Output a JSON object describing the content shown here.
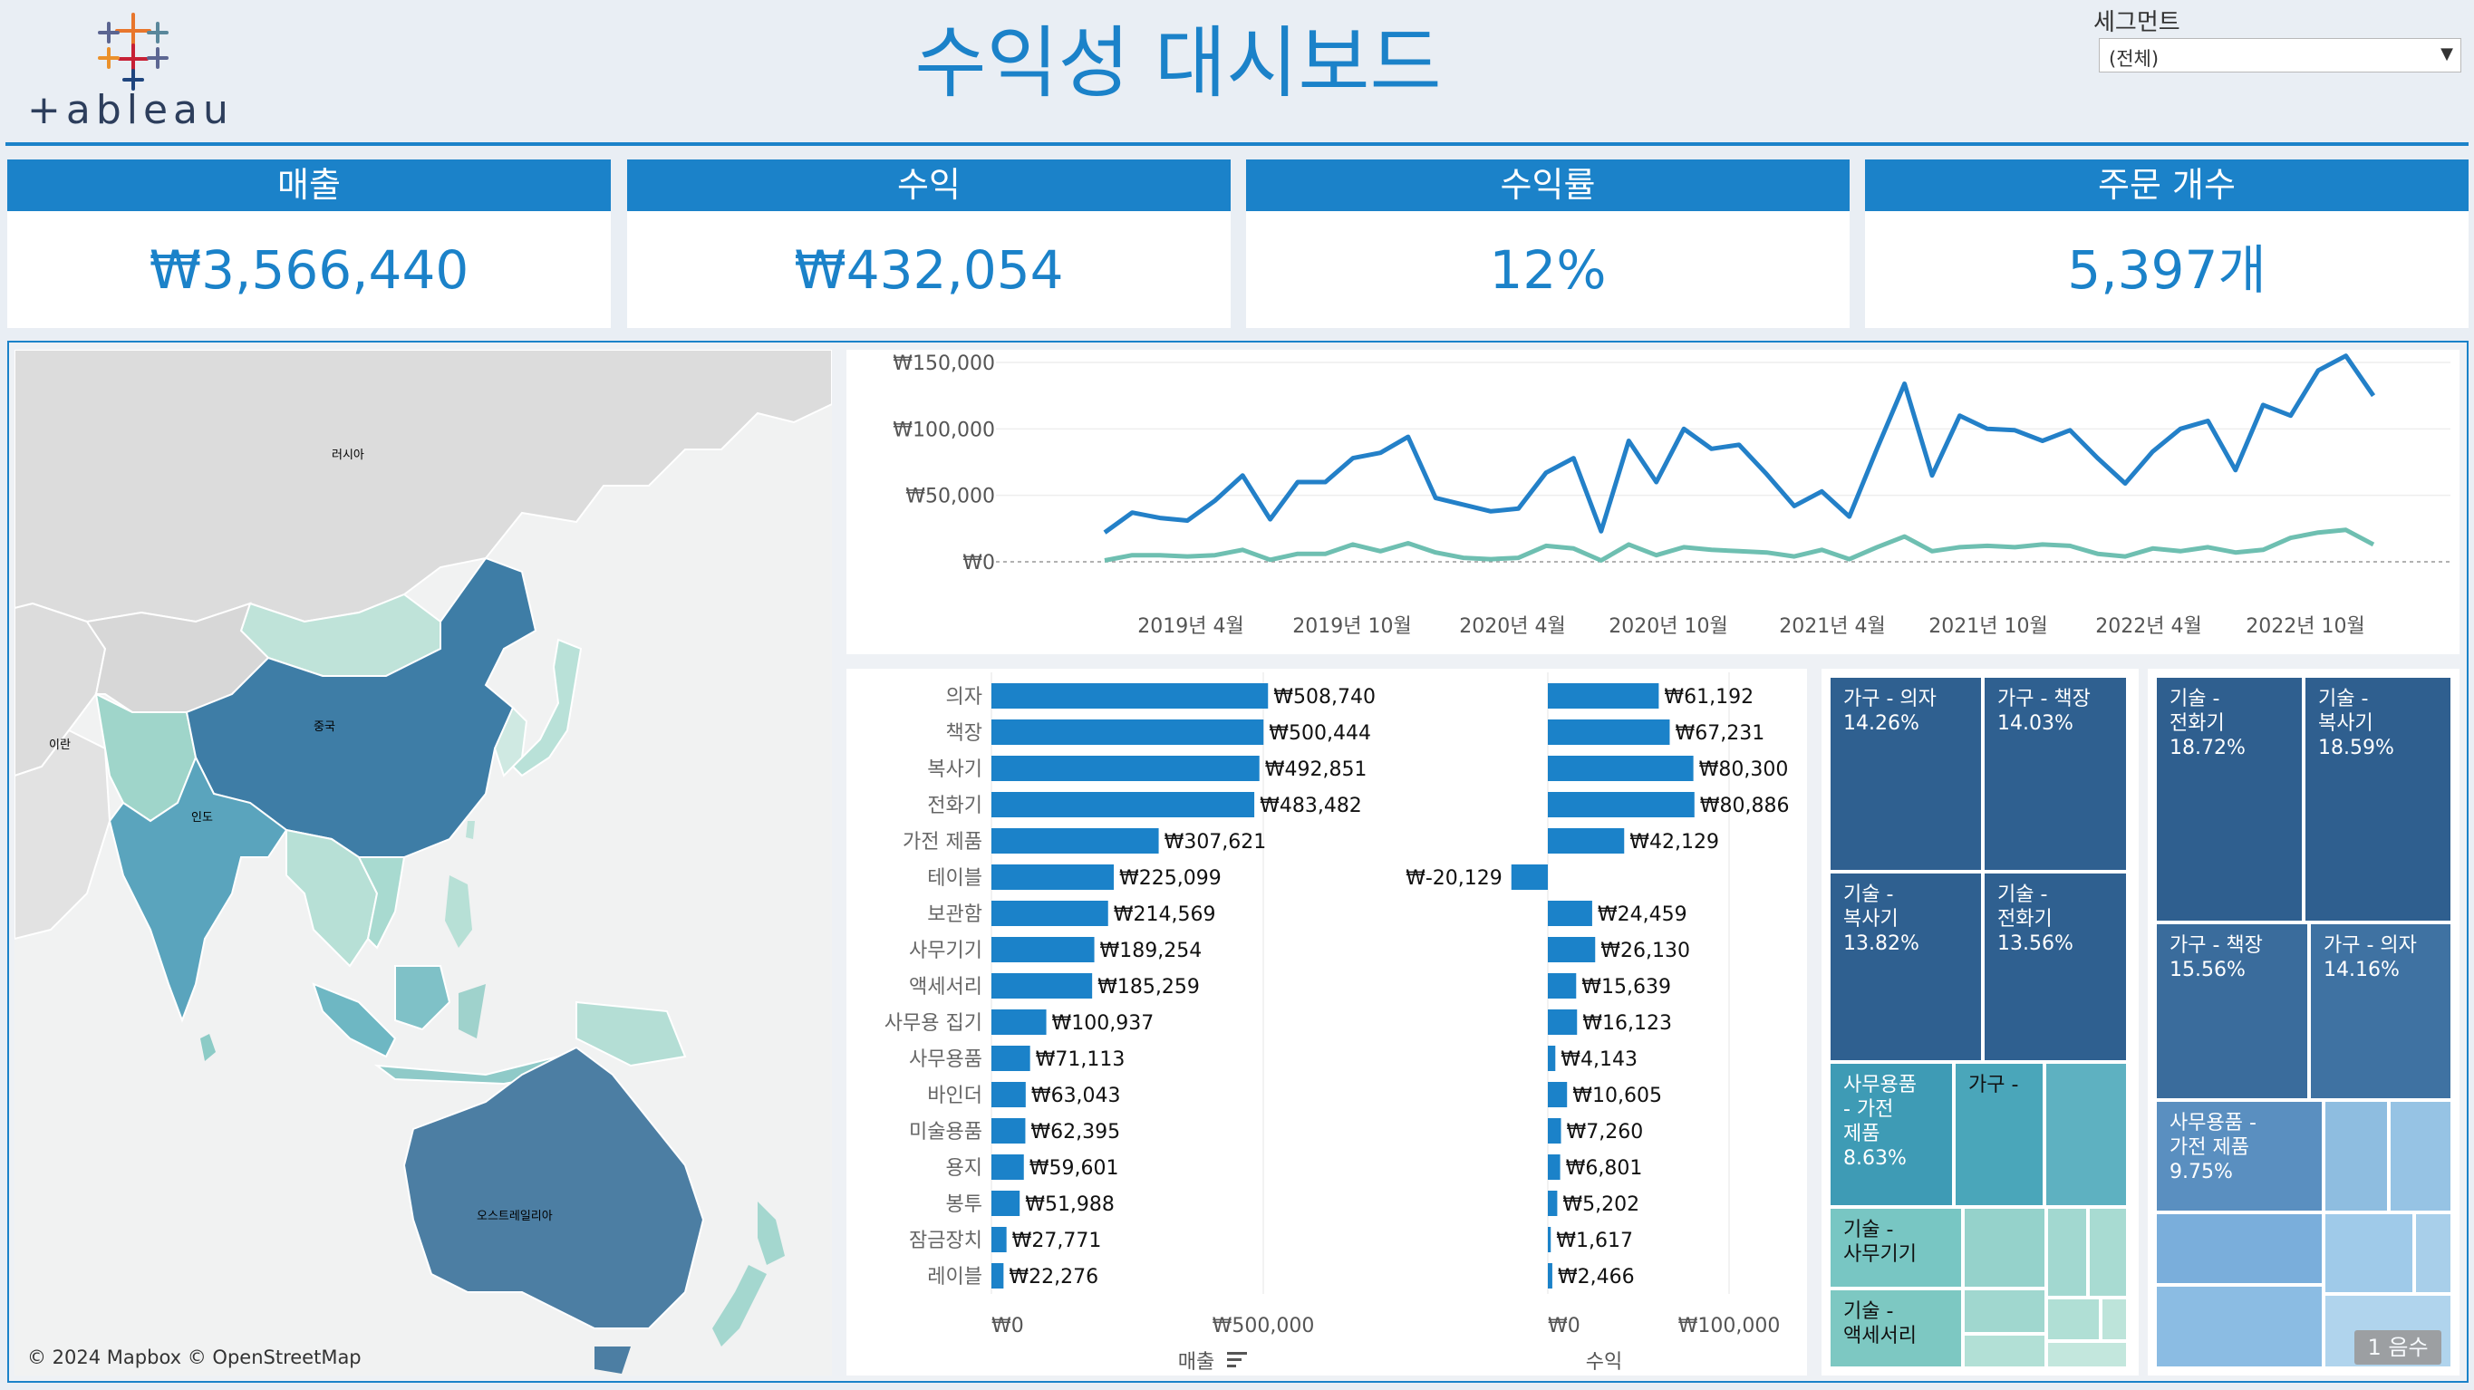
{
  "header": {
    "title": "수익성 대시보드",
    "logo_text": "+ableau",
    "segment_filter": {
      "label": "세그먼트",
      "value": "(전체)"
    }
  },
  "kpis": [
    {
      "label": "매출",
      "value": "₩3,566,440"
    },
    {
      "label": "수익",
      "value": "₩432,054"
    },
    {
      "label": "수익률",
      "value": "12%"
    },
    {
      "label": "주문 개수",
      "value": "5,397개"
    }
  ],
  "colors": {
    "accent": "#1b82c9",
    "sales_line": "#2380c8",
    "profit_line": "#6ebfb1",
    "bar": "#1b82c9"
  },
  "map": {
    "labels": [
      "러시아",
      "중국",
      "이란",
      "인도",
      "오스트레일리아"
    ],
    "copyright": "© 2024 Mapbox © OpenStreetMap"
  },
  "line_chart": {
    "chart_data": {
      "type": "line",
      "x_tick_labels": [
        "2019년 4월",
        "2019년 10월",
        "2020년 4월",
        "2020년 10월",
        "2021년 4월",
        "2021년 10월",
        "2022년 4월",
        "2022년 10월"
      ],
      "y_tick_labels": [
        "₩150,000",
        "₩100,000",
        "₩50,000",
        "₩0"
      ],
      "y_ticks": [
        150000,
        100000,
        50000,
        0
      ],
      "ylim": [
        0,
        150000
      ],
      "series": [
        {
          "values": [
            22000,
            37000,
            33000,
            31000,
            46000,
            65000,
            32000,
            60000,
            60000,
            78000,
            82000,
            94000,
            48000,
            43000,
            38000,
            40000,
            67000,
            78000,
            23000,
            91000,
            60000,
            100000,
            85000,
            88000,
            66000,
            42000,
            53000,
            34000,
            85000,
            134000,
            65000,
            110000,
            100000,
            99000,
            91000,
            99000,
            78000,
            59000,
            83000,
            100000,
            106000,
            69000,
            118000,
            110000,
            144000,
            155000,
            125000
          ]
        },
        {
          "values": [
            1000,
            5000,
            5000,
            4000,
            5000,
            9000,
            1500,
            6000,
            6000,
            13000,
            8000,
            14000,
            7000,
            3000,
            2000,
            3000,
            12000,
            10000,
            1000,
            13000,
            5000,
            11000,
            9000,
            8000,
            7000,
            4000,
            9000,
            2000,
            11000,
            19000,
            8000,
            11000,
            12000,
            11000,
            13000,
            12000,
            6000,
            4000,
            10000,
            8000,
            11000,
            7000,
            9000,
            18000,
            22000,
            24000,
            13000
          ]
        }
      ]
    }
  },
  "bar_chart": {
    "chart_data": {
      "type": "bar",
      "categories": [
        "의자",
        "책장",
        "복사기",
        "전화기",
        "가전 제품",
        "테이블",
        "보관함",
        "사무기기",
        "액세서리",
        "사무용 집기",
        "사무용품",
        "바인더",
        "미술용품",
        "용지",
        "봉투",
        "잠금장치",
        "레이블"
      ],
      "series": [
        {
          "name": "매출",
          "values": [
            508740,
            500444,
            492851,
            483482,
            307621,
            225099,
            214569,
            189254,
            185259,
            100937,
            71113,
            63043,
            62395,
            59601,
            51988,
            27771,
            22276
          ],
          "labels": [
            "₩508,740",
            "₩500,444",
            "₩492,851",
            "₩483,482",
            "₩307,621",
            "₩225,099",
            "₩214,569",
            "₩189,254",
            "₩185,259",
            "₩100,937",
            "₩71,113",
            "₩63,043",
            "₩62,395",
            "₩59,601",
            "₩51,988",
            "₩27,771",
            "₩22,276"
          ]
        },
        {
          "name": "수익",
          "values": [
            61192,
            67231,
            80300,
            80886,
            42129,
            -20129,
            24459,
            26130,
            15639,
            16123,
            4143,
            10605,
            7260,
            6801,
            5202,
            1617,
            2466
          ],
          "labels": [
            "₩61,192",
            "₩67,231",
            "₩80,300",
            "₩80,886",
            "₩42,129",
            "₩-20,129",
            "₩24,459",
            "₩26,130",
            "₩15,639",
            "₩16,123",
            "₩4,143",
            "₩10,605",
            "₩7,260",
            "₩6,801",
            "₩5,202",
            "₩1,617",
            "₩2,466"
          ]
        }
      ],
      "sales_axis": {
        "ticks": [
          0,
          500000
        ],
        "tick_labels": [
          "₩0",
          "₩500,000"
        ],
        "title": "매출"
      },
      "profit_axis": {
        "ticks": [
          0,
          100000
        ],
        "tick_labels": [
          "₩0",
          "₩100,000"
        ],
        "title": "수익"
      }
    }
  },
  "treemap_left": {
    "cells": [
      {
        "label": "가구 - 의자\n14.26%"
      },
      {
        "label": "가구 - 책장\n14.03%"
      },
      {
        "label": "기술 -\n복사기\n13.82%"
      },
      {
        "label": "기술 -\n전화기\n13.56%"
      },
      {
        "label": "사무용품\n- 가전\n제품\n8.63%"
      },
      {
        "label": "가구 -"
      },
      {
        "label": "기술 -\n사무기기"
      },
      {
        "label": "기술 -\n액세서리"
      }
    ]
  },
  "treemap_right": {
    "cells": [
      {
        "label": "기술 -\n전화기\n18.72%"
      },
      {
        "label": "기술 -\n복사기\n18.59%"
      },
      {
        "label": "가구 - 책장\n15.56%"
      },
      {
        "label": "가구 - 의자\n14.16%"
      },
      {
        "label": "사무용품 -\n가전 제품\n9.75%"
      }
    ],
    "badge": "1 음수"
  }
}
